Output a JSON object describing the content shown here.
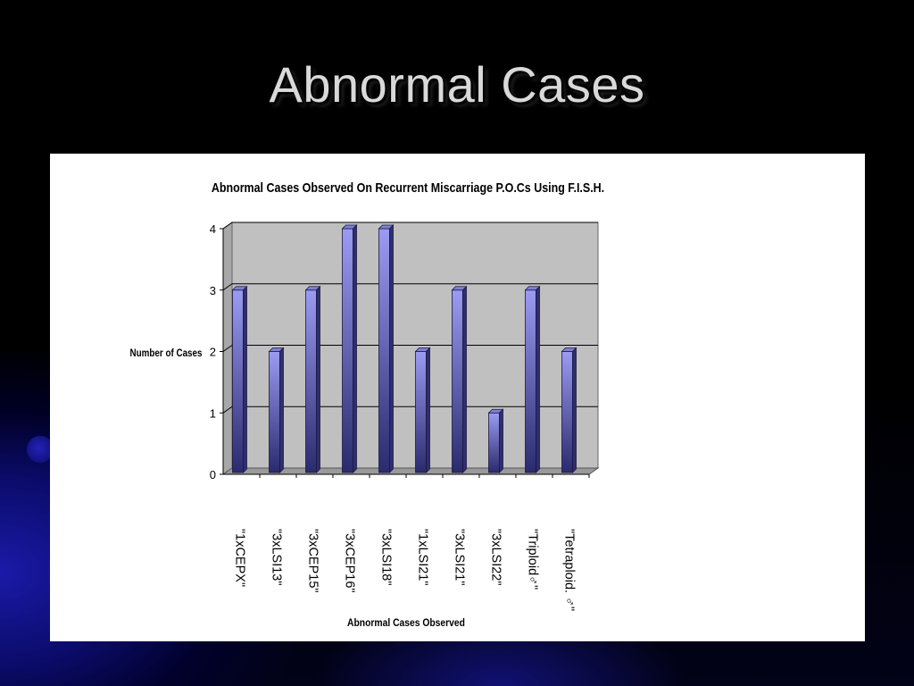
{
  "slide": {
    "title": "Abnormal Cases"
  },
  "chart_data": {
    "type": "bar",
    "title": "Abnormal Cases Observed On Recurrent Miscarriage P.O.Cs Using F.I.S.H.",
    "xlabel": "Abnormal Cases Observed",
    "ylabel": "Number of Cases",
    "categories": [
      "\"1xCEPX\"",
      "\"3xLSI13\"",
      "\"3xCEP15\"",
      "\"3xCEP16\"",
      "\"3xLSI18\"",
      "\"1xLSI21\"",
      "\"3xLSI21\"",
      "\"3xLSI22\"",
      "\"Triploid♂\"",
      "\"Tetraploid. ♂\""
    ],
    "values": [
      3,
      2,
      3,
      4,
      4,
      2,
      3,
      1,
      3,
      2
    ],
    "ylim": [
      0,
      4
    ],
    "yticks": [
      0,
      1,
      2,
      3,
      4
    ],
    "grid": true,
    "style": "3d-column",
    "colors": {
      "bar_top": "#9b9bf2",
      "bar_bottom": "#2a2a6e",
      "plot_bg": "#c0c0c0",
      "floor": "#9a9a9a",
      "gridline": "#000000"
    }
  }
}
